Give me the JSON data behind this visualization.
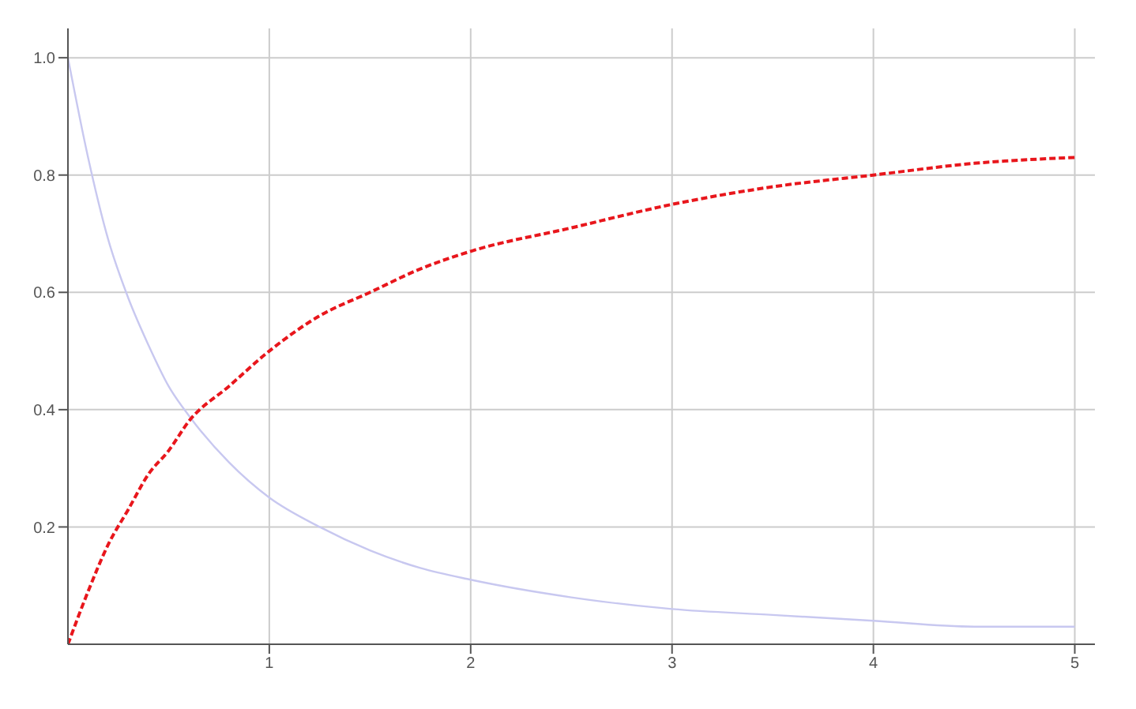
{
  "chart_data": {
    "type": "line",
    "x": [
      0,
      0.1,
      0.2,
      0.3,
      0.4,
      0.5,
      0.6,
      0.8,
      1,
      1.25,
      1.5,
      1.75,
      2,
      2.5,
      3,
      3.5,
      4,
      4.5,
      5
    ],
    "series": [
      {
        "color": "#c8c8f0",
        "line_style": "solid",
        "values": [
          1,
          0.83,
          0.69,
          0.59,
          0.51,
          0.44,
          0.39,
          0.31,
          0.25,
          0.2,
          0.16,
          0.13,
          0.11,
          0.08,
          0.06,
          0.05,
          0.04,
          0.03,
          0.03
        ]
      },
      {
        "color": "#e8161c",
        "line_style": "dashed",
        "values": [
          0,
          0.09,
          0.17,
          0.23,
          0.29,
          0.33,
          0.38,
          0.44,
          0.5,
          0.56,
          0.6,
          0.64,
          0.67,
          0.71,
          0.75,
          0.78,
          0.8,
          0.82,
          0.83
        ]
      }
    ],
    "xlim": [
      0,
      5.1
    ],
    "ylim": [
      0,
      1.05
    ],
    "xticks": [
      1,
      2,
      3,
      4,
      5
    ],
    "yticks": [
      0.2,
      0.4,
      0.6,
      0.8,
      {
        "value": 1,
        "label": "1.0"
      }
    ],
    "grid": true,
    "marker": "none"
  }
}
